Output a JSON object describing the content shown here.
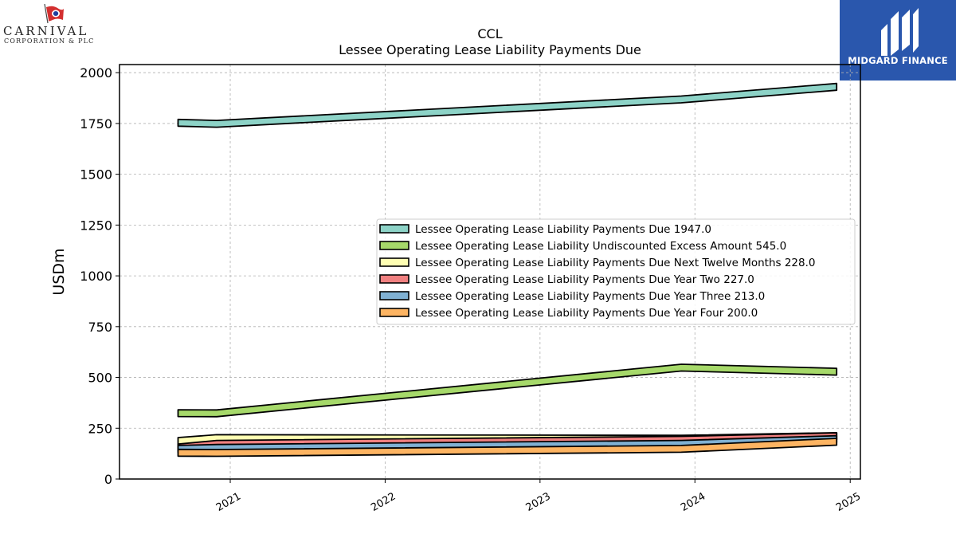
{
  "header": {
    "company_logo": {
      "name": "CARNIVAL",
      "sub": "CORPORATION & PLC",
      "icon": "flag-icon"
    },
    "partner_logo": {
      "name": "MIDGARD FINANCE",
      "icon": "midgard-m-icon",
      "bg": "#2a57ad"
    }
  },
  "chart_data": {
    "type": "area",
    "title": "CCL",
    "subtitle": "Lessee Operating Lease Liability Payments Due",
    "ylabel": "USDm",
    "xlabel": "",
    "ylim": [
      0,
      2040
    ],
    "y_ticks": [
      0,
      250,
      500,
      750,
      1000,
      1250,
      1500,
      1750,
      2000
    ],
    "x_ticks": [
      "2021",
      "2022",
      "2023",
      "2024",
      "2025"
    ],
    "x_range": [
      "2020-04-15",
      "2025-01-25"
    ],
    "x": [
      "2020-08-31",
      "2020-11-30",
      "2023-11-30",
      "2024-11-30"
    ],
    "grid": true,
    "legend_position": "center-right",
    "series": [
      {
        "name": "Lessee Operating Lease Liability Payments Due",
        "legend_value": "1947.0",
        "color": "#8dd3c7",
        "values": [
          1770,
          1765,
          1885,
          1947
        ]
      },
      {
        "name": "Lessee Operating Lease Liability Undiscounted Excess Amount",
        "legend_value": "545.0",
        "color": "#a6d96a",
        "values": [
          341,
          340,
          565,
          545
        ]
      },
      {
        "name": "Lessee Operating Lease Liability Payments Due Next Twelve Months",
        "legend_value": "228.0",
        "color": "#ffffb3",
        "values": [
          204,
          218,
          215,
          228
        ]
      },
      {
        "name": "Lessee Operating Lease Liability Payments Due Year Two",
        "legend_value": "227.0",
        "color": "#f08080",
        "values": [
          172,
          190,
          210,
          227
        ]
      },
      {
        "name": "Lessee Operating Lease Liability Payments Due Year Three",
        "legend_value": "213.0",
        "color": "#80b1d3",
        "values": [
          165,
          170,
          190,
          213
        ]
      },
      {
        "name": "Lessee Operating Lease Liability Payments Due Year Four",
        "legend_value": "200.0",
        "color": "#fdb462",
        "values": [
          146,
          145,
          165,
          200
        ]
      }
    ]
  }
}
